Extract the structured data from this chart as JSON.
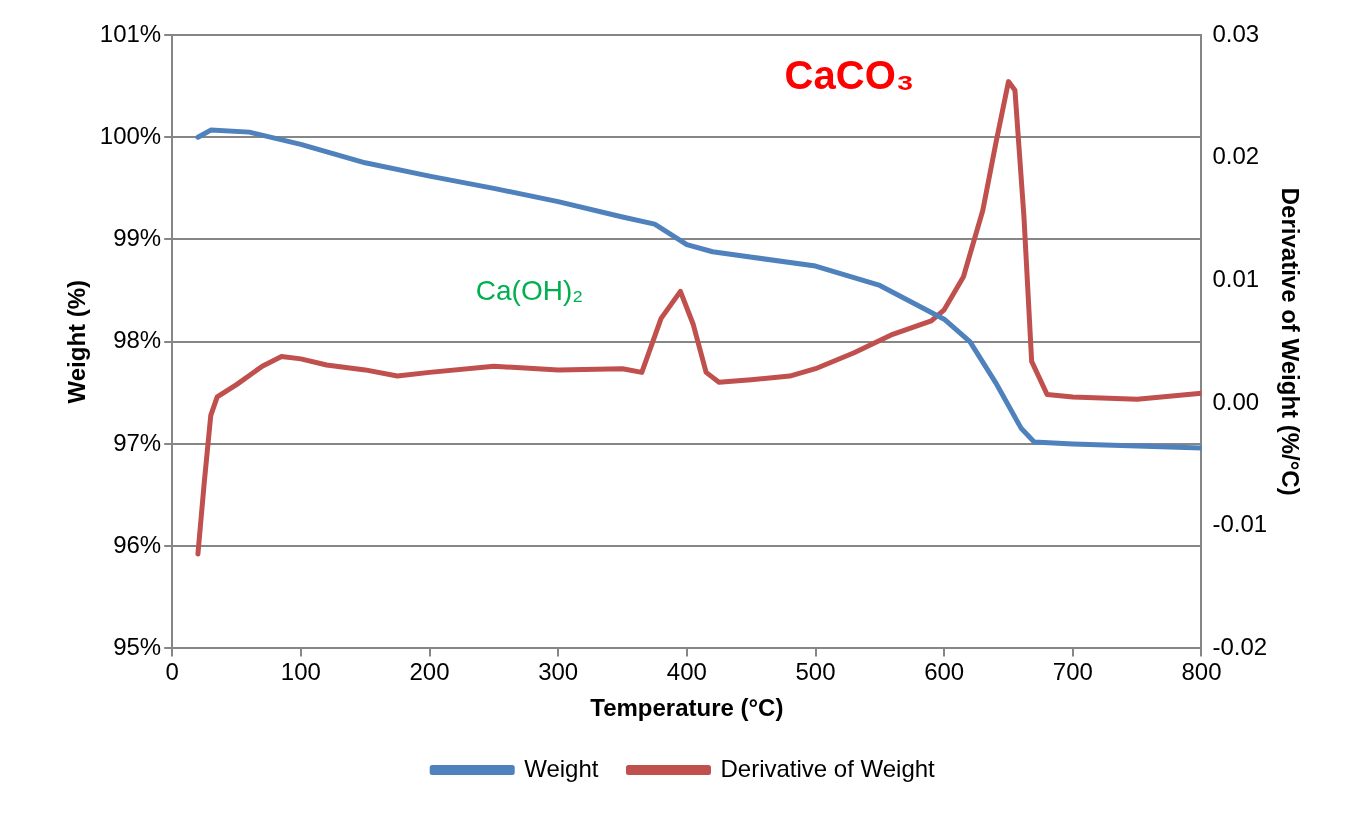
{
  "chart_data": {
    "type": "line",
    "xlabel": "Temperature (°C)",
    "ylabel": "Weight (%)",
    "y2label": "Derivative of Weight (%/°C)",
    "xlim": [
      0,
      800
    ],
    "xticks": [
      0,
      100,
      200,
      300,
      400,
      500,
      600,
      700,
      800
    ],
    "ylim": [
      95,
      101
    ],
    "yticks": [
      {
        "value": 95,
        "label": "95%"
      },
      {
        "value": 96,
        "label": "96%"
      },
      {
        "value": 97,
        "label": "97%"
      },
      {
        "value": 98,
        "label": "98%"
      },
      {
        "value": 99,
        "label": "99%"
      },
      {
        "value": 100,
        "label": "100%"
      },
      {
        "value": 101,
        "label": "101%"
      }
    ],
    "y2lim": [
      -0.02,
      0.03
    ],
    "y2ticks": [
      -0.02,
      -0.01,
      {
        "value": 0,
        "label": "0.00"
      },
      0.01,
      0.02,
      0.03
    ],
    "grid": "y",
    "legend": "bottom",
    "marker": "none",
    "line_style": "solid",
    "series": [
      {
        "name": "Weight",
        "color": "#4f81bd",
        "x": [
          20,
          30,
          60,
          100,
          150,
          200,
          250,
          300,
          350,
          375,
          400,
          420,
          500,
          550,
          600,
          620,
          640,
          660,
          670,
          700,
          800
        ],
        "values": [
          100.0,
          100.07,
          100.05,
          99.93,
          99.75,
          99.62,
          99.5,
          99.37,
          99.22,
          99.15,
          98.95,
          98.88,
          98.74,
          98.55,
          98.22,
          98.0,
          97.6,
          97.15,
          97.02,
          97.0,
          96.96
        ]
      },
      {
        "name": "Derivative of Weight",
        "color": "#c0504d",
        "axis": "y2",
        "x": [
          20,
          25,
          30,
          35,
          50,
          70,
          85,
          100,
          120,
          150,
          175,
          200,
          250,
          300,
          350,
          365,
          380,
          395,
          405,
          415,
          425,
          450,
          480,
          500,
          530,
          560,
          590,
          600,
          615,
          630,
          640,
          650,
          655,
          662,
          668,
          680,
          700,
          750,
          800
        ],
        "values": [
          -0.0123,
          -0.0064,
          -0.001,
          0.0005,
          0.0015,
          0.003,
          0.0038,
          0.0036,
          0.0031,
          0.0027,
          0.0022,
          0.0025,
          0.003,
          0.0027,
          0.0028,
          0.0025,
          0.0069,
          0.0091,
          0.0064,
          0.0025,
          0.0017,
          0.0019,
          0.0022,
          0.0028,
          0.0041,
          0.0056,
          0.0067,
          0.0076,
          0.0103,
          0.0157,
          0.0211,
          0.0262,
          0.0255,
          0.0152,
          0.0034,
          0.0007,
          0.0005,
          0.0003,
          0.0008
        ]
      }
    ],
    "annotations": [
      "Ca(OH)₂",
      "CaCO₃"
    ]
  }
}
